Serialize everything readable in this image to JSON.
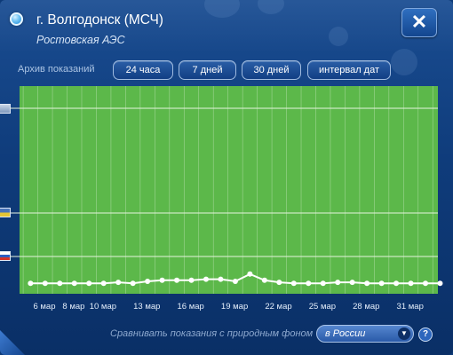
{
  "header": {
    "title": "г. Волгодонск (МСЧ)",
    "subtitle": "Ростовская АЭС",
    "close_icon": "close-icon",
    "location_icon": "location-pin-icon"
  },
  "archive": {
    "label": "Архив показаний",
    "buttons": [
      "24 часа",
      "7 дней",
      "30 дней",
      "интервал дат"
    ]
  },
  "legend_markers": [
    "background-level-icon",
    "flag-ukraine-icon",
    "flag-russia-icon"
  ],
  "chart_data": {
    "type": "line",
    "title": "",
    "xlabel": "",
    "ylabel": "",
    "x_tick_labels": [
      "6 мар",
      "8 мар",
      "10 мар",
      "13 мар",
      "16 мар",
      "19 мар",
      "22 мар",
      "25 мар",
      "28 мар",
      "31 мар"
    ],
    "x": [
      "5 мар",
      "6 мар",
      "7 мар",
      "8 мар",
      "9 мар",
      "10 мар",
      "11 мар",
      "12 мар",
      "13 мар",
      "14 мар",
      "15 мар",
      "16 мар",
      "17 мар",
      "18 мар",
      "19 мар",
      "20 мар",
      "21 мар",
      "22 мар",
      "23 мар",
      "24 мар",
      "25 мар",
      "26 мар",
      "27 мар",
      "28 мар",
      "29 мар",
      "30 мар",
      "31 мар",
      "1 апр",
      "2 апр"
    ],
    "series": [
      {
        "values": [
          0.1,
          0.1,
          0.1,
          0.1,
          0.1,
          0.1,
          0.11,
          0.1,
          0.12,
          0.13,
          0.13,
          0.13,
          0.14,
          0.14,
          0.12,
          0.19,
          0.13,
          0.11,
          0.1,
          0.1,
          0.1,
          0.11,
          0.11,
          0.1,
          0.1,
          0.1,
          0.1,
          0.1,
          0.1
        ]
      }
    ],
    "ylim": [
      0,
      2.0
    ],
    "grid": true,
    "colors": {
      "background": "#5cb84a",
      "line": "#ffffff",
      "grid": "#d8eed0"
    }
  },
  "compare": {
    "label": "Сравнивать показания с природным фоном",
    "selected": "в России",
    "help": "?"
  }
}
